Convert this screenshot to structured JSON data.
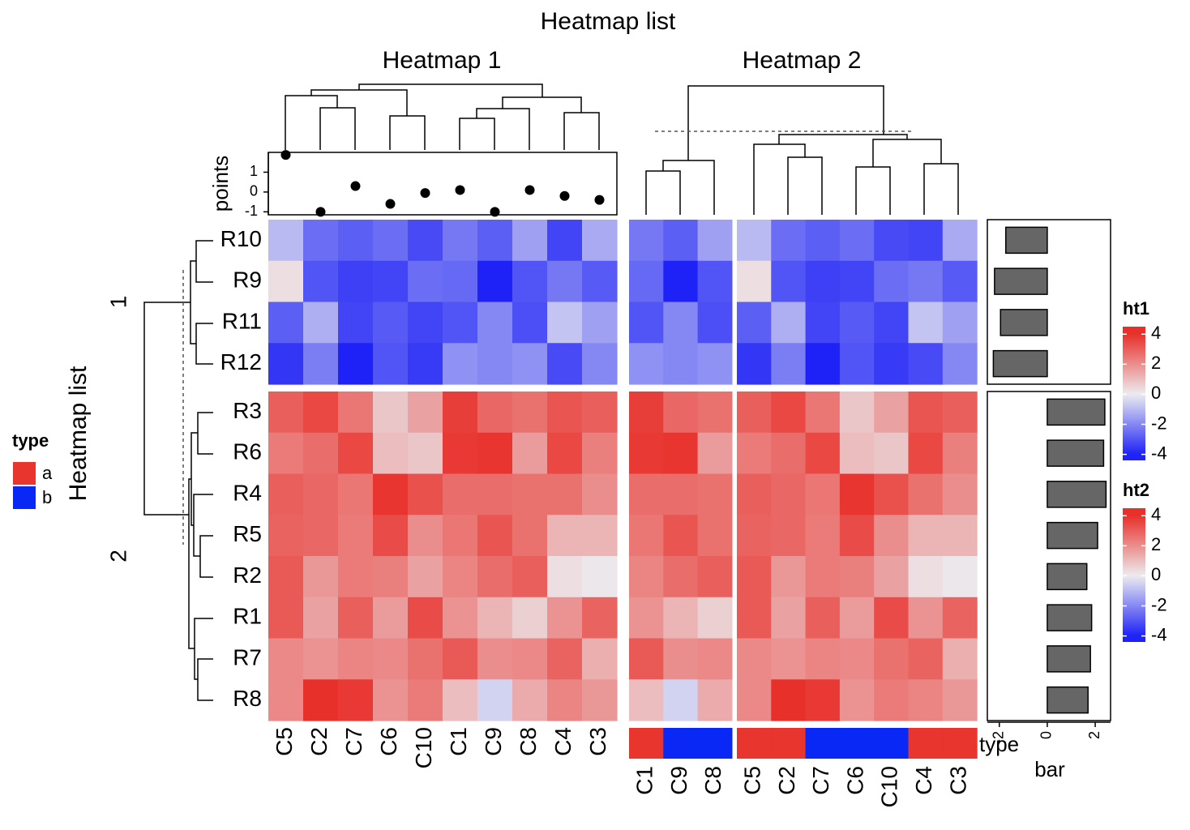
{
  "chart_data": {
    "type": "heatmap",
    "title": "Heatmap list",
    "row_title": "Heatmap list",
    "row_slices": [
      {
        "label": "1",
        "rows": [
          "R10",
          "R9",
          "R11",
          "R12"
        ]
      },
      {
        "label": "2",
        "rows": [
          "R3",
          "R6",
          "R4",
          "R5",
          "R2",
          "R1",
          "R7",
          "R8"
        ]
      }
    ],
    "color_scale": {
      "breaks": [
        -4,
        0,
        4
      ],
      "colors": [
        "#1e22f6",
        "#ececf0",
        "#e8302a"
      ]
    },
    "heatmaps": [
      {
        "title": "Heatmap 1",
        "columns": [
          [
            "C5",
            "C2",
            "C7",
            "C6",
            "C10",
            "C1",
            "C9",
            "C8",
            "C4",
            "C3"
          ]
        ],
        "values": [
          [
            [
              -1,
              -2.5,
              -2.8,
              -2.5,
              -3.2,
              -2.3,
              -2.8,
              -1.5,
              -3.3,
              -1.3
            ],
            [
              0.3,
              -3,
              -3.4,
              -3.3,
              -2.5,
              -2.6,
              -4,
              -3,
              -2.3,
              -2.9
            ],
            [
              -2.8,
              -1.2,
              -3.3,
              -2.9,
              -3.3,
              -3,
              -2,
              -3.1,
              -0.8,
              -1.5
            ],
            [
              -3.6,
              -2.2,
              -4,
              -3,
              -3.5,
              -1.8,
              -2,
              -1.8,
              -3.2,
              -2
            ]
          ],
          [
            [
              3,
              3.5,
              2.5,
              0.8,
              1.6,
              3.7,
              2.8,
              2.6,
              3.2,
              3
            ],
            [
              2.4,
              2.7,
              3.5,
              1,
              0.8,
              3.8,
              3.9,
              1.7,
              3.5,
              2.3
            ],
            [
              3,
              2.8,
              2.5,
              3.9,
              3.3,
              2.7,
              2.7,
              2.6,
              2.6,
              2
            ],
            [
              2.9,
              2.8,
              2.4,
              3.4,
              2,
              2.5,
              3.2,
              2.6,
              1.2,
              1.2
            ],
            [
              3.1,
              1.8,
              2.4,
              2.3,
              1.6,
              2.2,
              2.7,
              3,
              0.3,
              0.1
            ],
            [
              3.1,
              1.6,
              3,
              1.7,
              3.4,
              1.9,
              1.2,
              0.6,
              1.9,
              2.9
            ],
            [
              2.1,
              1.9,
              2.2,
              2.1,
              2.6,
              3.1,
              2,
              2.1,
              2.9,
              1.3
            ],
            [
              2.1,
              4,
              3.8,
              1.9,
              2.4,
              1,
              -0.5,
              1.4,
              2.2,
              1.8
            ]
          ]
        ]
      },
      {
        "title": "Heatmap 2",
        "columns": [
          [
            "C1",
            "C9",
            "C8"
          ],
          [
            "C5",
            "C2",
            "C7",
            "C6",
            "C10",
            "C4",
            "C3"
          ]
        ],
        "values": [
          [
            [
              -2.3,
              -2.8,
              -1.5,
              -1,
              -2.5,
              -2.8,
              -2.5,
              -3.2,
              -3.3,
              -1.3
            ],
            [
              -2.6,
              -4,
              -3,
              0.3,
              -3,
              -3.4,
              -3.3,
              -2.5,
              -2.3,
              -2.9
            ],
            [
              -3,
              -2,
              -3.1,
              -2.8,
              -1.2,
              -3.3,
              -2.9,
              -3.3,
              -0.8,
              -1.5
            ],
            [
              -1.8,
              -2,
              -1.8,
              -3.6,
              -2.2,
              -4,
              -3,
              -3.5,
              -3.2,
              -2
            ]
          ],
          [
            [
              3.7,
              2.8,
              2.6,
              3,
              3.5,
              2.5,
              0.8,
              1.6,
              3.2,
              3
            ],
            [
              3.8,
              3.9,
              1.7,
              2.4,
              2.7,
              3.5,
              1,
              0.8,
              3.5,
              2.3
            ],
            [
              2.7,
              2.7,
              2.6,
              3,
              2.8,
              2.5,
              3.9,
              3.3,
              2.6,
              2
            ],
            [
              2.5,
              3.2,
              2.6,
              2.9,
              2.8,
              2.4,
              3.4,
              2,
              1.2,
              1.2
            ],
            [
              2.2,
              2.7,
              3,
              3.1,
              1.8,
              2.4,
              2.3,
              1.6,
              0.3,
              0.1
            ],
            [
              1.9,
              1.2,
              0.6,
              3.1,
              1.6,
              3,
              1.7,
              3.4,
              1.9,
              2.9
            ],
            [
              3.1,
              2,
              2.1,
              2.1,
              1.9,
              2.2,
              2.1,
              2.6,
              2.9,
              1.3
            ],
            [
              1,
              -0.5,
              1.4,
              2.1,
              4,
              3.8,
              1.9,
              2.4,
              2.2,
              1.8
            ]
          ]
        ]
      }
    ],
    "points": {
      "label": "points",
      "values": [
        1.87,
        -1,
        0.3,
        -0.6,
        -0.05,
        0.1,
        -1,
        0.1,
        -0.2,
        -0.4
      ],
      "ylim": [
        -1.15,
        2.0
      ],
      "yticks": [
        -1,
        0,
        1
      ]
    },
    "type_annotation": {
      "label": "type",
      "values": [
        "a",
        "b",
        "b",
        "a",
        "a",
        "b",
        "b",
        "b",
        "a",
        "a"
      ]
    },
    "bar": {
      "label": "bar",
      "values": [
        [
          -1.73,
          -2.2,
          -1.95,
          -2.25
        ],
        [
          2.4,
          2.35,
          2.45,
          2.1,
          1.65,
          1.85,
          1.8,
          1.7
        ]
      ],
      "xlim": [
        -2.5,
        2.64
      ],
      "xticks": [
        -2,
        0,
        2
      ],
      "color": "#666666"
    },
    "type_legend": {
      "title": "type",
      "levels": [
        "a",
        "b"
      ],
      "colors": [
        "#e8352e",
        "#0a28f5"
      ]
    },
    "color_legends": [
      {
        "title": "ht1",
        "ticks": [
          4,
          2,
          0,
          -2,
          -4
        ],
        "range": [
          -4.4,
          4.5
        ]
      },
      {
        "title": "ht2",
        "ticks": [
          4,
          2,
          0,
          -2,
          -4
        ],
        "range": [
          -4.4,
          4.5
        ]
      }
    ]
  }
}
